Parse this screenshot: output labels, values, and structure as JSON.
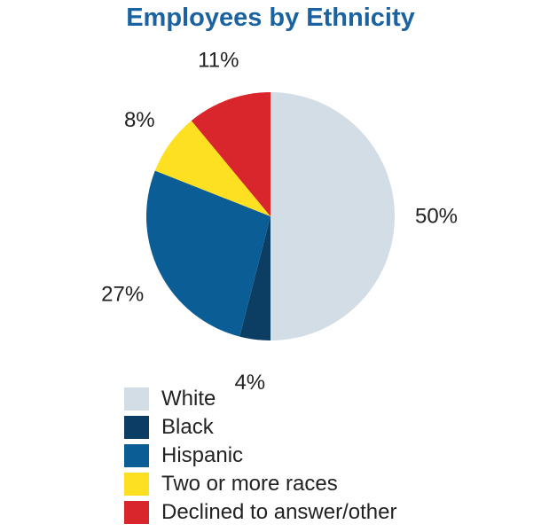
{
  "chart_data": {
    "type": "pie",
    "title": "Employees by Ethnicity",
    "slices": [
      {
        "name": "White",
        "value": 50,
        "label": "50%",
        "color": "#d2dde5"
      },
      {
        "name": "Black",
        "value": 4,
        "label": "4%",
        "color": "#0c3d63"
      },
      {
        "name": "Hispanic",
        "value": 27,
        "label": "27%",
        "color": "#0b5d96"
      },
      {
        "name": "Two or more races",
        "value": 8,
        "label": "8%",
        "color": "#fde021"
      },
      {
        "name": "Declined to answer/other",
        "value": 11,
        "label": "11%",
        "color": "#d9262d"
      }
    ],
    "start_angle": "12 o'clock",
    "direction": "clockwise",
    "legend_position": "bottom"
  }
}
